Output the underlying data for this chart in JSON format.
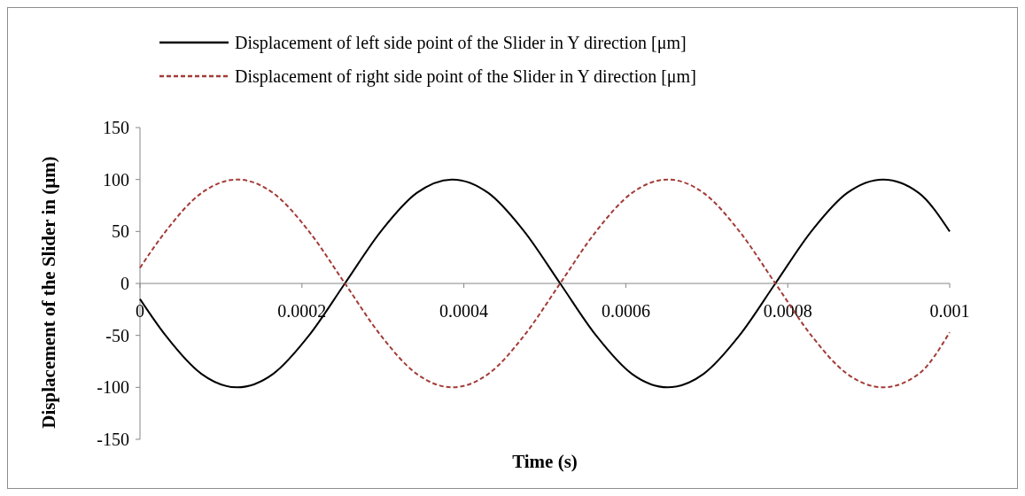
{
  "chart_data": {
    "type": "line",
    "xlabel": "Time (s)",
    "ylabel": "Displacement of the Slider in (μm)",
    "xlim": [
      0,
      0.001
    ],
    "xticks": [
      {
        "value": 0,
        "label": "0"
      },
      0.0002,
      0.0004,
      0.0006,
      0.0008,
      0.001
    ],
    "ylim": [
      -150,
      150
    ],
    "yticks": [
      -150,
      -100,
      -50,
      0,
      50,
      100,
      150
    ],
    "grid": false,
    "legend": "top",
    "marker": "none",
    "series": [
      {
        "name": "Displacement of left side point of the Slider in Y direction [μm]",
        "color": "#000000",
        "line_style": "solid",
        "x": [
          0,
          3.16e-05,
          7.59e-05,
          0.0001202,
          0.0001645,
          0.0002088,
          0.0002531,
          0.0002974,
          0.0003417,
          0.000386,
          0.0004303,
          0.0004746,
          0.0005189,
          0.0005632,
          0.0006075,
          0.0006518,
          0.0006961,
          0.0007404,
          0.0007847,
          0.000829,
          0.0008733,
          0.0009176,
          0.0009619,
          0.001
        ],
        "values": [
          -15,
          -50,
          -87,
          -100,
          -87,
          -50,
          0,
          50,
          87,
          100,
          87,
          50,
          0,
          -50,
          -87,
          -100,
          -87,
          -50,
          0,
          50,
          87,
          100,
          87,
          50
        ]
      },
      {
        "name": "Displacement of right side point of the Slider in Y direction [μm]",
        "color": "#a33b37",
        "line_style": "dashed",
        "x": [
          0,
          3.16e-05,
          7.59e-05,
          0.0001202,
          0.0001645,
          0.0002088,
          0.0002531,
          0.0002974,
          0.0003417,
          0.000386,
          0.0004303,
          0.0004746,
          0.0005189,
          0.0005632,
          0.0006075,
          0.0006518,
          0.0006961,
          0.0007404,
          0.0007847,
          0.000829,
          0.0008733,
          0.0009176,
          0.0009619,
          0.001
        ],
        "values": [
          15,
          50,
          87,
          100,
          87,
          50,
          0,
          -50,
          -87,
          -100,
          -87,
          -50,
          0,
          50,
          87,
          100,
          87,
          50,
          0,
          -50,
          -87,
          -100,
          -87,
          -47
        ]
      }
    ]
  }
}
